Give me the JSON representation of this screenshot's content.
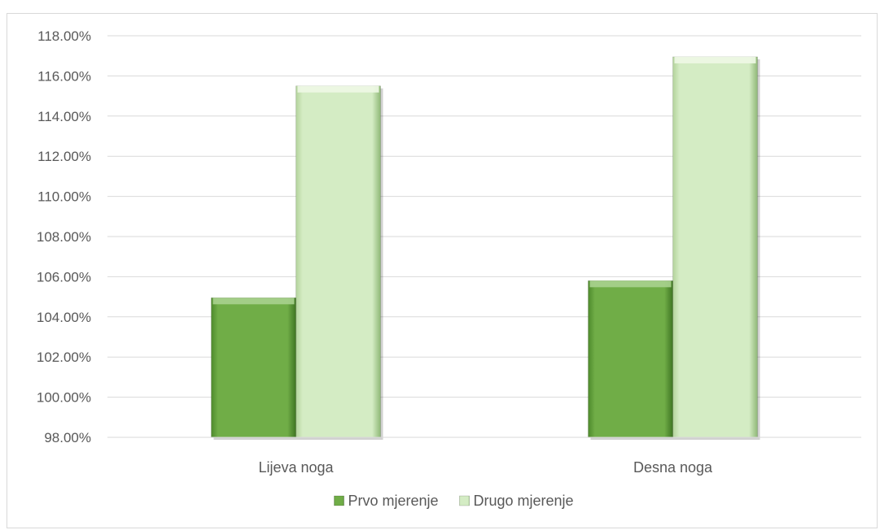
{
  "chart_data": {
    "type": "bar",
    "title": "",
    "xlabel": "",
    "ylabel": "",
    "categories": [
      "Lijeva noga",
      "Desna noga"
    ],
    "series": [
      {
        "name": "Prvo mjerenje",
        "values": [
          104.95,
          105.8
        ],
        "color": "#70ad47"
      },
      {
        "name": "Drugo mjerenje",
        "values": [
          115.5,
          116.95
        ],
        "color": "#d4ecc4"
      }
    ],
    "ylim": [
      98,
      118
    ],
    "ytick_step": 2,
    "ytick_labels": [
      "98.00%",
      "100.00%",
      "102.00%",
      "104.00%",
      "106.00%",
      "108.00%",
      "110.00%",
      "112.00%",
      "114.00%",
      "116.00%",
      "118.00%"
    ],
    "grid": true,
    "legend_position": "bottom"
  }
}
